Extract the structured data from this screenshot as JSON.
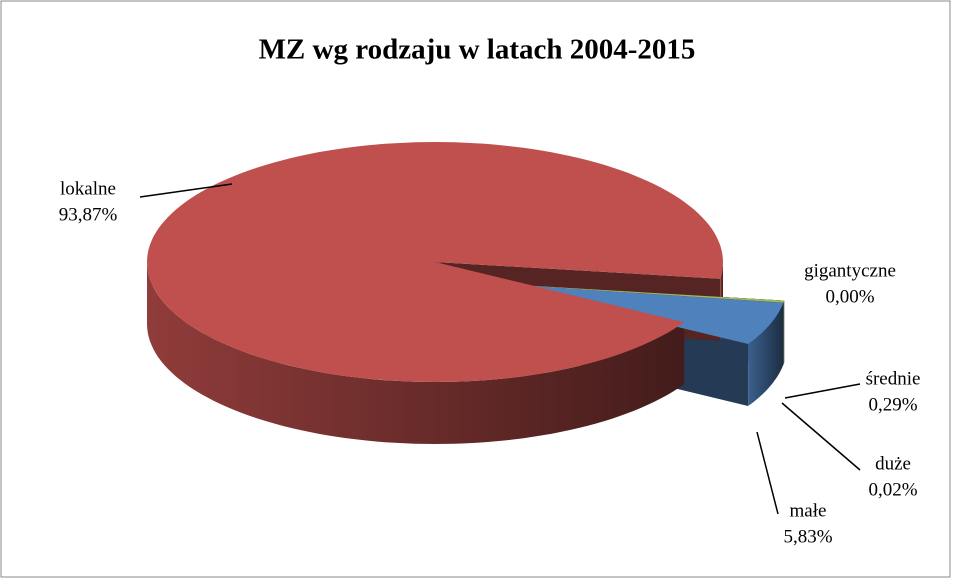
{
  "chart_data": {
    "type": "pie",
    "title": "MZ wg rodzaju w latach 2004-2015",
    "categories": [
      "gigantyczne",
      "średnie",
      "duże",
      "małe",
      "lokalne"
    ],
    "values": [
      0.0,
      0.29,
      0.02,
      5.83,
      93.87
    ],
    "value_labels": [
      "0,00%",
      "0,29%",
      "0,02%",
      "5,83%",
      "93,87%"
    ],
    "colors": [
      "#4bacc6",
      "#9bbb59",
      "#8064a2",
      "#4f81bd",
      "#c0504d"
    ]
  }
}
